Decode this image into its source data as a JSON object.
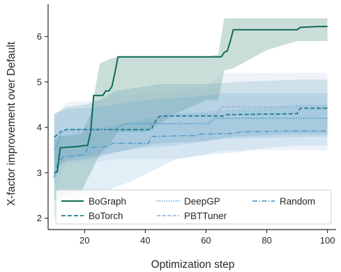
{
  "chart_data": {
    "type": "line",
    "xlabel": "Optimization step",
    "ylabel": "X-factor improvement over Default",
    "xlim": [
      8,
      101
    ],
    "ylim": [
      1.75,
      6.65
    ],
    "xticks": [
      20,
      40,
      60,
      80,
      100
    ],
    "yticks": [
      2,
      3,
      4,
      5,
      6
    ],
    "grid": false,
    "legend": {
      "placement": "bottom",
      "columns": 3
    },
    "series": [
      {
        "name": "BoGraph",
        "color": "#0d6b52",
        "dash": "solid",
        "points": [
          [
            10,
            3.0
          ],
          [
            11,
            3.02
          ],
          [
            12,
            3.55
          ],
          [
            18,
            3.58
          ],
          [
            20,
            3.6
          ],
          [
            21,
            3.6
          ],
          [
            22,
            3.9
          ],
          [
            23,
            4.7
          ],
          [
            26,
            4.7
          ],
          [
            27,
            4.8
          ],
          [
            28,
            4.8
          ],
          [
            29,
            4.9
          ],
          [
            30,
            5.2
          ],
          [
            31,
            5.55
          ],
          [
            65,
            5.55
          ],
          [
            66,
            5.65
          ],
          [
            67,
            5.68
          ],
          [
            68,
            5.9
          ],
          [
            69,
            6.15
          ],
          [
            90,
            6.15
          ],
          [
            91,
            6.2
          ],
          [
            97,
            6.22
          ],
          [
            100,
            6.22
          ]
        ],
        "band": [
          [
            10,
            2.4,
            3.75
          ],
          [
            11,
            2.4,
            3.75
          ],
          [
            12,
            2.5,
            3.8
          ],
          [
            19,
            2.6,
            3.85
          ],
          [
            22,
            3.0,
            4.3
          ],
          [
            25,
            3.4,
            5.4
          ],
          [
            28,
            3.6,
            5.5
          ],
          [
            31,
            3.9,
            5.55
          ],
          [
            40,
            3.9,
            5.55
          ],
          [
            50,
            4.3,
            5.55
          ],
          [
            60,
            4.6,
            5.55
          ],
          [
            64,
            4.6,
            5.6
          ],
          [
            66,
            5.25,
            6.4
          ],
          [
            69,
            5.3,
            6.4
          ],
          [
            80,
            5.7,
            6.4
          ],
          [
            90,
            5.9,
            6.4
          ],
          [
            100,
            5.9,
            6.4
          ]
        ]
      },
      {
        "name": "BoTorch",
        "color": "#1a7f89",
        "dash": "dashed",
        "points": [
          [
            10,
            3.78
          ],
          [
            12,
            3.9
          ],
          [
            14,
            3.95
          ],
          [
            42,
            3.95
          ],
          [
            43,
            4.1
          ],
          [
            44,
            4.2
          ],
          [
            45,
            4.25
          ],
          [
            66,
            4.25
          ],
          [
            67,
            4.28
          ],
          [
            90,
            4.3
          ],
          [
            91,
            4.42
          ],
          [
            100,
            4.42
          ]
        ],
        "band": [
          [
            10,
            3.15,
            4.3
          ],
          [
            14,
            3.25,
            4.45
          ],
          [
            20,
            3.3,
            4.5
          ],
          [
            25,
            3.35,
            4.6
          ],
          [
            30,
            3.45,
            4.8
          ],
          [
            40,
            3.6,
            4.9
          ],
          [
            45,
            3.65,
            4.95
          ],
          [
            60,
            3.7,
            4.95
          ],
          [
            70,
            3.8,
            5.0
          ],
          [
            90,
            3.85,
            5.05
          ],
          [
            100,
            3.85,
            5.05
          ]
        ]
      },
      {
        "name": "DeepGP",
        "color": "#3a91c7",
        "dash": "dotted",
        "points": [
          [
            10,
            3.5
          ],
          [
            11,
            3.6
          ],
          [
            12,
            3.85
          ],
          [
            13,
            3.9
          ],
          [
            14,
            3.95
          ],
          [
            30,
            3.95
          ],
          [
            31,
            4.0
          ],
          [
            33,
            4.08
          ],
          [
            61,
            4.08
          ],
          [
            62,
            4.15
          ],
          [
            63,
            4.2
          ],
          [
            100,
            4.2
          ]
        ],
        "band": [
          [
            10,
            3.0,
            4.3
          ],
          [
            14,
            3.3,
            4.4
          ],
          [
            25,
            3.4,
            4.45
          ],
          [
            30,
            3.45,
            4.5
          ],
          [
            40,
            3.55,
            4.6
          ],
          [
            50,
            3.6,
            4.65
          ],
          [
            60,
            3.7,
            4.7
          ],
          [
            65,
            3.75,
            4.75
          ],
          [
            100,
            3.8,
            4.75
          ]
        ]
      },
      {
        "name": "PBTTuner",
        "color": "#9fb7dc",
        "dash": "dashdash",
        "points": [
          [
            10,
            3.6
          ],
          [
            12,
            3.9
          ],
          [
            14,
            3.9
          ],
          [
            26,
            3.9
          ],
          [
            27,
            4.25
          ],
          [
            30,
            4.28
          ],
          [
            63,
            4.28
          ],
          [
            64,
            4.35
          ],
          [
            65,
            4.45
          ],
          [
            100,
            4.45
          ]
        ],
        "band": [
          [
            10,
            2.7,
            4.2
          ],
          [
            14,
            3.2,
            4.55
          ],
          [
            26,
            3.25,
            4.6
          ],
          [
            30,
            3.3,
            4.7
          ],
          [
            50,
            3.3,
            4.8
          ],
          [
            60,
            3.4,
            4.85
          ],
          [
            65,
            3.5,
            5.2
          ],
          [
            100,
            3.5,
            5.2
          ]
        ]
      },
      {
        "name": "Random",
        "color": "#5a9ec9",
        "dash": "dashdot",
        "points": [
          [
            10,
            2.9
          ],
          [
            11,
            3.2
          ],
          [
            13,
            3.35
          ],
          [
            20,
            3.4
          ],
          [
            21,
            3.55
          ],
          [
            28,
            3.58
          ],
          [
            29,
            3.65
          ],
          [
            41,
            3.65
          ],
          [
            42,
            3.8
          ],
          [
            57,
            3.82
          ],
          [
            58,
            3.85
          ],
          [
            70,
            3.87
          ],
          [
            71,
            3.9
          ],
          [
            88,
            3.92
          ],
          [
            89,
            3.92
          ],
          [
            100,
            3.92
          ]
        ],
        "band": [
          [
            10,
            2.0,
            3.75
          ],
          [
            12,
            2.3,
            3.85
          ],
          [
            20,
            2.45,
            3.9
          ],
          [
            25,
            2.55,
            4.0
          ],
          [
            35,
            2.8,
            4.1
          ],
          [
            41,
            3.0,
            4.2
          ],
          [
            50,
            3.3,
            4.3
          ],
          [
            60,
            3.4,
            4.35
          ],
          [
            70,
            3.45,
            4.4
          ],
          [
            80,
            3.55,
            4.45
          ],
          [
            90,
            3.6,
            4.5
          ],
          [
            100,
            3.6,
            4.5
          ]
        ]
      }
    ]
  }
}
